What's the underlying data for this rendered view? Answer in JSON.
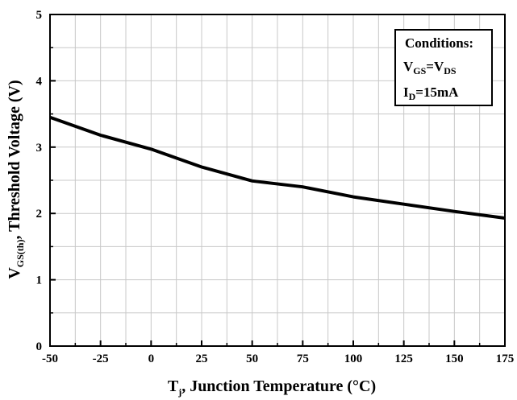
{
  "chart_data": {
    "type": "line",
    "x": [
      -50,
      -25,
      0,
      25,
      50,
      75,
      100,
      125,
      150,
      175
    ],
    "series": [
      {
        "values": [
          3.45,
          3.18,
          2.97,
          2.7,
          2.49,
          2.4,
          2.25,
          2.14,
          2.03,
          1.93
        ]
      }
    ],
    "xlim": [
      -50,
      175
    ],
    "ylim": [
      0,
      5
    ],
    "x_ticks": [
      "-50",
      "-25",
      "0",
      "25",
      "50",
      "75",
      "100",
      "125",
      "150",
      "175"
    ],
    "y_ticks": [
      "0",
      "1",
      "2",
      "3",
      "4",
      "5"
    ],
    "x_minor_step": 12.5,
    "y_minor_step": 0.5,
    "grid": true,
    "line_color": "#000000",
    "grid_color": "#c8c8c8",
    "xlabel": {
      "main": "T",
      "sub": "j",
      "rest": ", Junction Temperature (°C)"
    },
    "ylabel": {
      "main": "V",
      "sub": "GS(th)",
      "rest": ", Threshold Voltage (V)"
    },
    "conditions": {
      "title": "Conditions:",
      "line1": {
        "a": "V",
        "a_sub": "GS",
        "eq": "=V",
        "b_sub": "DS"
      },
      "line2": {
        "a": "I",
        "a_sub": "D",
        "rest": "=15mA"
      }
    }
  }
}
